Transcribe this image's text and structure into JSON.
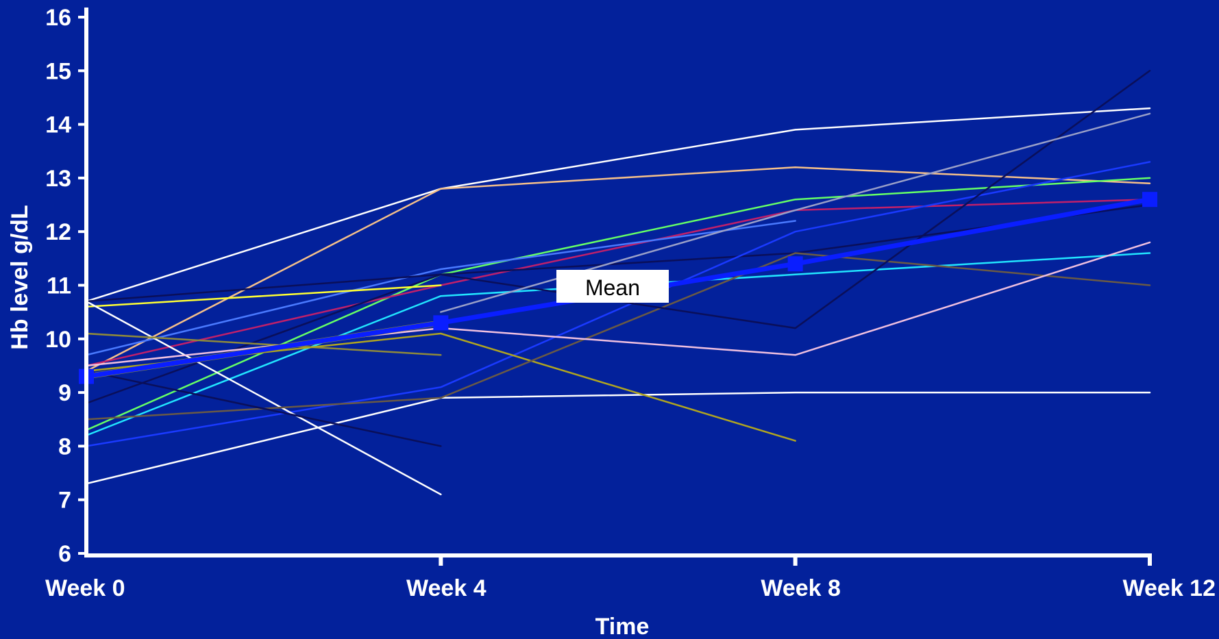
{
  "chart_data": {
    "type": "line",
    "title": "",
    "xlabel": "Time",
    "ylabel": "Hb level g/dL",
    "categories": [
      "Week 0",
      "Week 4",
      "Week 8",
      "Week 12"
    ],
    "ylim": [
      6,
      16
    ],
    "yticks": [
      6,
      7,
      8,
      9,
      10,
      11,
      12,
      13,
      14,
      15,
      16
    ],
    "grid": false,
    "legend": "none",
    "background_color": "#03219b",
    "annotations": [
      {
        "text": "Mean",
        "target_series": "Mean"
      }
    ],
    "series": [
      {
        "values": [
          10.7,
          12.8,
          13.9,
          14.3
        ],
        "color": "#ffffff",
        "width": 2.5
      },
      {
        "values": [
          9.4,
          12.8,
          13.2,
          12.9
        ],
        "color": "#f5c08a",
        "width": 2.5
      },
      {
        "values": [
          8.3,
          11.2,
          12.6,
          13.0
        ],
        "color": "#66ff66",
        "width": 2.5
      },
      {
        "values": [
          9.5,
          11.0,
          12.4,
          12.6
        ],
        "color": "#c0206a",
        "width": 2.5
      },
      {
        "values": [
          9.7,
          11.3,
          12.2,
          null
        ],
        "color": "#4a7aff",
        "width": 2.5
      },
      {
        "values": [
          8.8,
          11.2,
          11.6,
          12.5
        ],
        "color": "#0a0f5a",
        "width": 2.5
      },
      {
        "values": [
          8.2,
          10.8,
          11.2,
          11.6
        ],
        "color": "#22e5ff",
        "width": 2.5
      },
      {
        "values": [
          10.6,
          11.0,
          null,
          null
        ],
        "color": "#ffff33",
        "width": 2.5
      },
      {
        "values": [
          8.0,
          9.1,
          12.0,
          13.3
        ],
        "color": "#1a3aff",
        "width": 2.5
      },
      {
        "values": [
          7.3,
          8.9,
          9.0,
          9.0
        ],
        "color": "#ffffff",
        "width": 2.5
      },
      {
        "values": [
          10.7,
          7.1,
          null,
          null
        ],
        "color": "#ffffff",
        "width": 2.5
      },
      {
        "values": [
          10.1,
          9.7,
          null,
          null
        ],
        "color": "#8f8a3a",
        "width": 2.5
      },
      {
        "values": [
          9.4,
          10.1,
          8.1,
          null
        ],
        "color": "#b0a520",
        "width": 2.5
      },
      {
        "values": [
          8.5,
          8.9,
          11.6,
          11.0
        ],
        "color": "#6a5a45",
        "width": 2.5
      },
      {
        "values": [
          9.4,
          8.0,
          null,
          null
        ],
        "color": "#0a0f5a",
        "width": 2.5
      },
      {
        "values": [
          9.5,
          10.2,
          9.7,
          11.8
        ],
        "color": "#f0c0e0",
        "width": 2.5
      },
      {
        "values": [
          10.7,
          11.2,
          10.2,
          15.0
        ],
        "color": "#0a0f5a",
        "width": 2.5
      },
      {
        "values": [
          null,
          10.5,
          12.4,
          14.2
        ],
        "color": "#9aa0c8",
        "width": 2.5
      },
      {
        "values": [
          9.3,
          10.3,
          null,
          null
        ],
        "color": "#9a9a1a",
        "width": 8
      },
      {
        "values": [
          9.3,
          10.3,
          11.4,
          12.6
        ],
        "color": "#0a1eff",
        "width": 7,
        "markers": true,
        "name": "Mean"
      }
    ]
  }
}
